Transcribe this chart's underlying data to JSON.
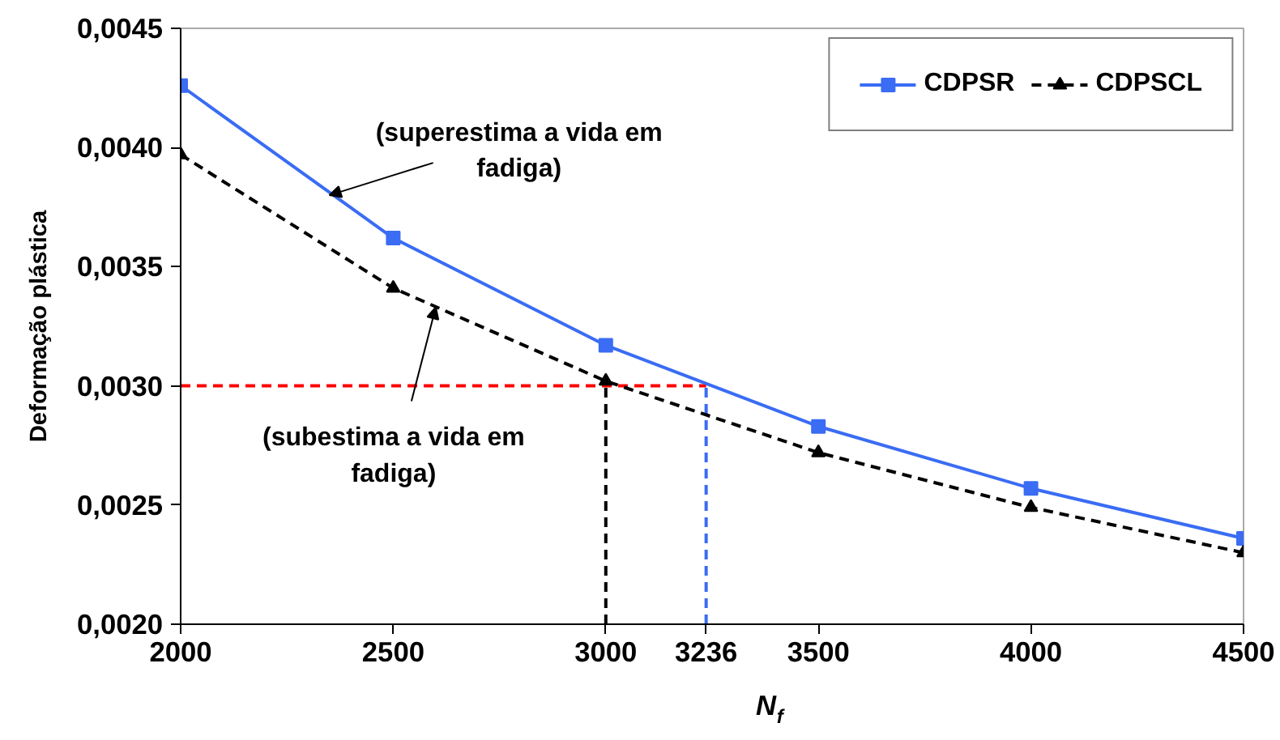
{
  "chart_data": {
    "type": "line",
    "xlabel": "N$_{f}$",
    "ylabel": "Deformação plástica",
    "x": [
      2000,
      2500,
      3000,
      3500,
      4000,
      4500
    ],
    "series": [
      {
        "name": "CDPSR",
        "color": "#3a6cf4",
        "values": [
          0.00426,
          0.00362,
          0.00317,
          0.00283,
          0.00257,
          0.00236
        ],
        "marker": "square",
        "line_style": "solid"
      },
      {
        "name": "CDPSCL",
        "color": "#000000",
        "values": [
          0.00397,
          0.00341,
          0.00302,
          0.00272,
          0.00249,
          0.0023
        ],
        "marker": "triangle",
        "line_style": "dashed"
      }
    ],
    "xlim": [
      2000,
      4500
    ],
    "xticks": [
      2000,
      2500,
      3000,
      3236,
      3500,
      4000,
      4500
    ],
    "ylim": [
      0.002,
      0.0045
    ],
    "yticks": [
      {
        "value": 0.002,
        "label": "0,0020"
      },
      {
        "value": 0.0025,
        "label": "0,0025"
      },
      {
        "value": 0.003,
        "label": "0,0030"
      },
      {
        "value": 0.0035,
        "label": "0,0035"
      },
      {
        "value": 0.004,
        "label": "0,0040"
      },
      {
        "value": 0.0045,
        "label": "0,0045"
      }
    ],
    "ref_lines": [
      {
        "axis": "y",
        "value": 0.003,
        "color": "#ff0000",
        "line_style": "dashed"
      },
      {
        "axis": "x",
        "value": 3000,
        "color": "#000000",
        "line_style": "dashed"
      },
      {
        "axis": "x",
        "value": 3236,
        "color": "#3a6cf4",
        "line_style": "dashed"
      }
    ],
    "annotations": [
      {
        "text": "(superestima a vida em fadiga)",
        "x": 2350,
        "y": 0.0038
      },
      {
        "text": "(subestima a vida em fadiga)",
        "x": 2600,
        "y": 0.00333
      }
    ],
    "grid": false,
    "legend": "top right"
  }
}
